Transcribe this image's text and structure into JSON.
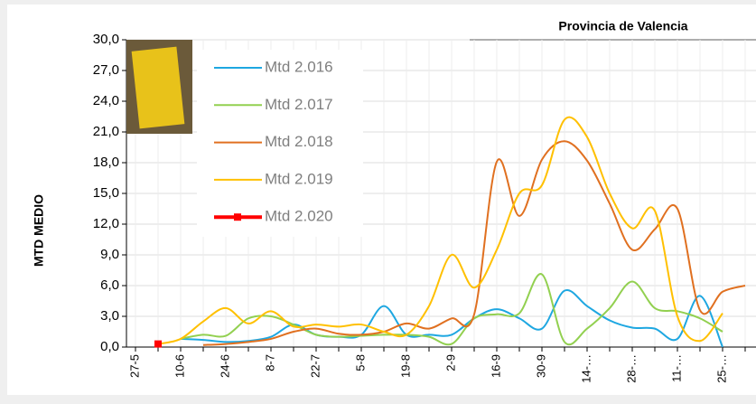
{
  "chart_data": {
    "type": "line",
    "title": "Provincia de Valencia",
    "y_label": "MTD MEDIO",
    "categories": [
      "27-5",
      null,
      "10-6",
      null,
      "24-6",
      null,
      "8-7",
      null,
      "22-7",
      null,
      "5-8",
      null,
      "19-8",
      null,
      "2-9",
      null,
      "16-9",
      null,
      "30-9",
      null,
      "14-…",
      null,
      "28-…",
      null,
      "11-…",
      null,
      "25-…",
      null
    ],
    "series": [
      {
        "name": "Mtd 2.016",
        "color": "#1ea7e1",
        "values": [
          null,
          null,
          0.8,
          0.7,
          0.5,
          0.6,
          1.0,
          2.2,
          1.2,
          1.0,
          1.2,
          4.0,
          1.2,
          1.2,
          1.2,
          2.8,
          3.7,
          2.8,
          1.8,
          5.5,
          4.0,
          2.6,
          1.9,
          1.8,
          0.8,
          5.0,
          0.0,
          null
        ]
      },
      {
        "name": "Mtd 2.017",
        "color": "#92d050",
        "values": [
          null,
          null,
          0.8,
          1.2,
          1.1,
          2.8,
          3.0,
          2.2,
          1.2,
          1.0,
          1.1,
          1.2,
          1.2,
          1.0,
          0.3,
          2.8,
          3.2,
          3.3,
          7.1,
          0.5,
          1.8,
          3.8,
          6.4,
          3.8,
          3.5,
          2.8,
          1.5,
          null
        ]
      },
      {
        "name": "Mtd 2.018",
        "color": "#e07020",
        "values": [
          null,
          null,
          null,
          0.2,
          0.3,
          0.5,
          0.8,
          1.5,
          1.8,
          1.3,
          1.2,
          1.5,
          2.3,
          1.8,
          2.8,
          3.2,
          18.1,
          12.8,
          18.3,
          20.1,
          18.2,
          14.0,
          9.5,
          11.5,
          13.5,
          3.6,
          5.4,
          6.0
        ]
      },
      {
        "name": "Mtd 2.019",
        "color": "#ffc000",
        "values": [
          null,
          0.3,
          0.8,
          2.5,
          3.8,
          2.3,
          3.5,
          2.0,
          2.2,
          2.0,
          2.2,
          1.5,
          1.2,
          4.0,
          9.0,
          5.8,
          9.5,
          15.0,
          15.8,
          22.2,
          20.5,
          15.0,
          11.6,
          13.3,
          3.0,
          0.6,
          3.3,
          null
        ]
      },
      {
        "name": "Mtd 2.020",
        "color": "#ff0000",
        "values": [
          null,
          0.3,
          null,
          null,
          null,
          null,
          null,
          null,
          null,
          null,
          null,
          null,
          null,
          null,
          null,
          null,
          null,
          null,
          null,
          null,
          null,
          null,
          null,
          null,
          null,
          null,
          null,
          null
        ]
      }
    ],
    "ylim": [
      0,
      30
    ],
    "yticks": [
      {
        "value": 0,
        "label": "0,0"
      },
      {
        "value": 3,
        "label": "3,0"
      },
      {
        "value": 6,
        "label": "6,0"
      },
      {
        "value": 9,
        "label": "9,0"
      },
      {
        "value": 12,
        "label": "12,0"
      },
      {
        "value": 15,
        "label": "15,0"
      },
      {
        "value": 18,
        "label": "18,0"
      },
      {
        "value": 21,
        "label": "21,0"
      },
      {
        "value": 24,
        "label": "24,0"
      },
      {
        "value": 27,
        "label": "27,0"
      },
      {
        "value": 30,
        "label": "30,0"
      }
    ],
    "grid": true
  }
}
